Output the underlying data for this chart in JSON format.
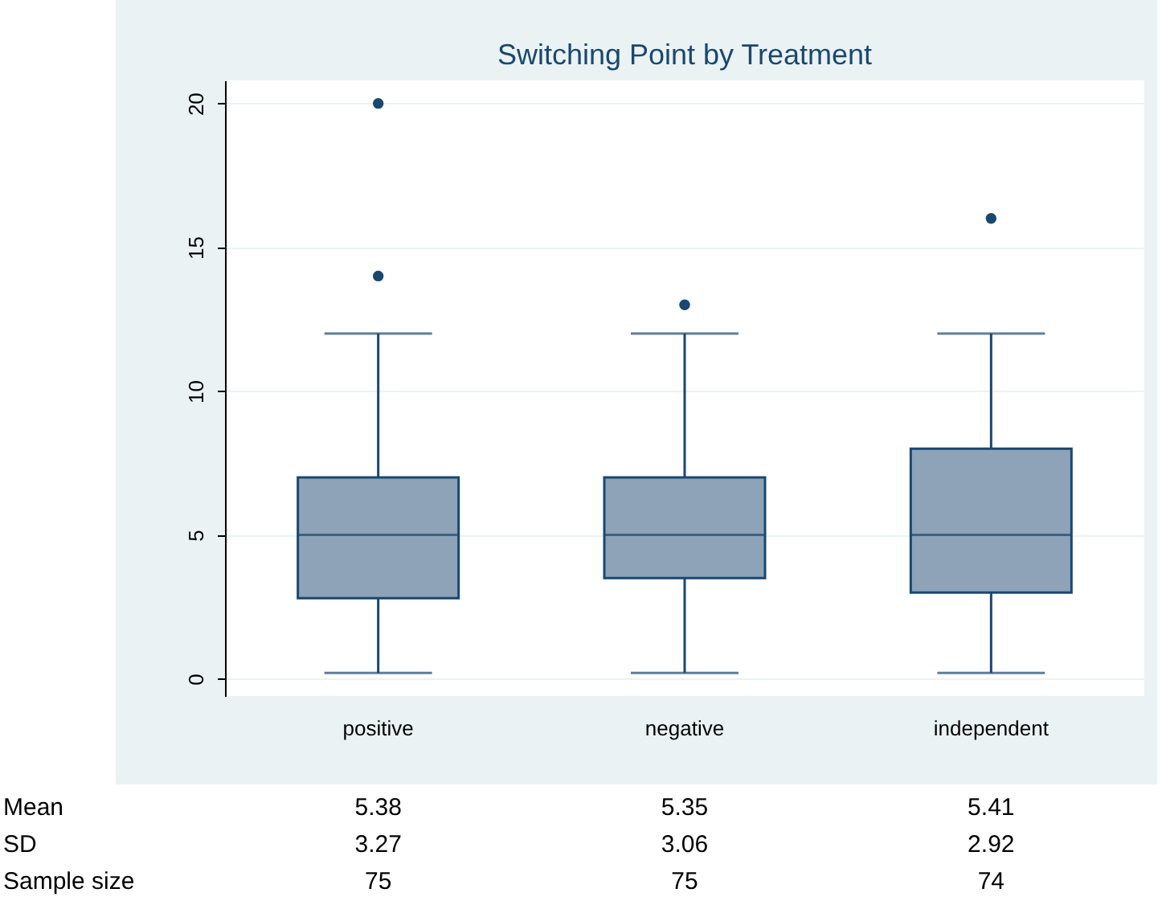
{
  "chart_data": {
    "type": "box",
    "title": "Switching Point by Treatment",
    "categories": [
      "positive",
      "negative",
      "independent"
    ],
    "boxes": [
      {
        "low": 0.2,
        "q1": 2.8,
        "median": 5,
        "q3": 7,
        "high": 12,
        "outliers": [
          14,
          20
        ]
      },
      {
        "low": 0.2,
        "q1": 3.5,
        "median": 5,
        "q3": 7,
        "high": 12,
        "outliers": [
          13
        ]
      },
      {
        "low": 0.2,
        "q1": 3,
        "median": 5,
        "q3": 8,
        "high": 12,
        "outliers": [
          16
        ]
      }
    ],
    "color": "#8ea3b7",
    "ylim": [
      -0.6,
      20.8
    ],
    "yticks": [
      0,
      5,
      10,
      15,
      20
    ],
    "grid": "y",
    "annotations": [
      "Mean",
      "5.38",
      "5.35",
      "5.41",
      "SD",
      "3.27",
      "3.06",
      "2.92",
      "Sample size",
      "75",
      "75",
      "74"
    ]
  }
}
